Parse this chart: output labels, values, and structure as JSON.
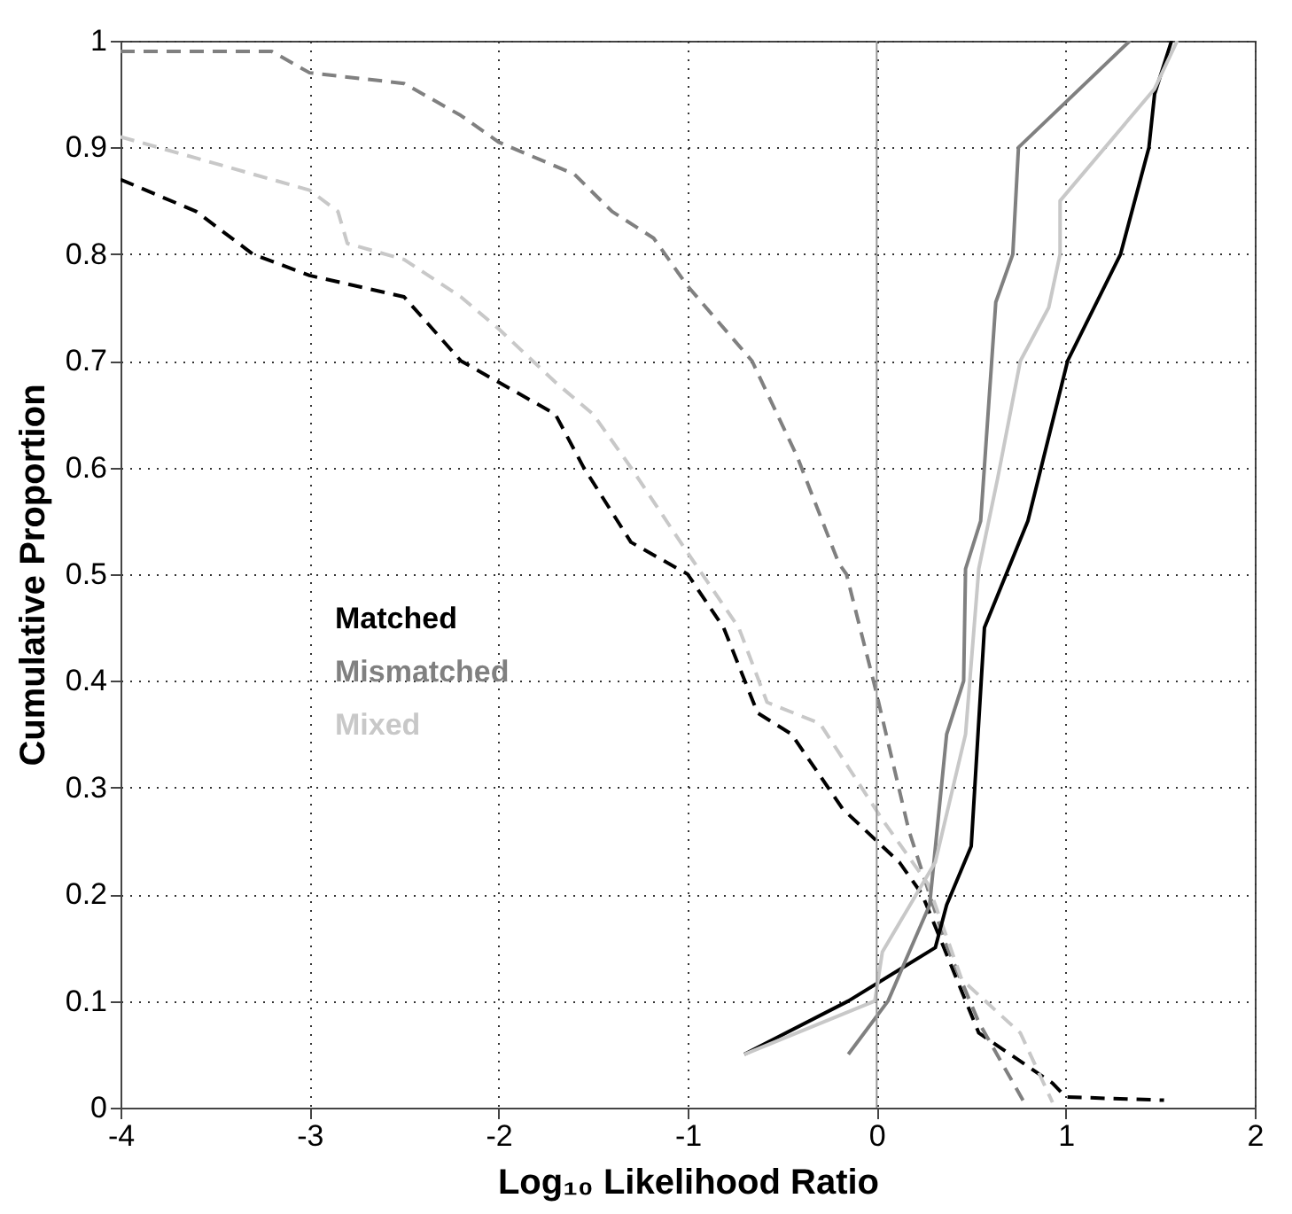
{
  "chart_data": {
    "type": "line",
    "xlabel": "Log₁₀ Likelihood Ratio",
    "ylabel": "Cumulative Proportion",
    "xlim": [
      -4,
      2
    ],
    "xticks": [
      -4,
      -3,
      -2,
      -1,
      0,
      1,
      2
    ],
    "ylim": [
      0,
      1
    ],
    "yticks": [
      0,
      0.1,
      0.2,
      0.3,
      0.4,
      0.5,
      0.6,
      0.7,
      0.8,
      0.9,
      1
    ],
    "grid": true,
    "legend": "left",
    "marker": "none",
    "ref_lines": [
      {
        "axis": "x",
        "value": 0,
        "color": "#999999",
        "line_style": "solid"
      }
    ],
    "series": [
      {
        "name": "Matched",
        "color": "#000000",
        "line_style": "dashed",
        "x": [
          -4,
          -3.6,
          -3.3,
          -3,
          -2.5,
          -2.2,
          -2,
          -1.7,
          -1.55,
          -1.3,
          -1,
          -0.81,
          -0.63,
          -0.45,
          -0.18,
          0.12,
          0.24,
          0.39,
          0.54,
          0.93,
          1.0,
          1.52
        ],
        "values": [
          0.87,
          0.84,
          0.8,
          0.78,
          0.76,
          0.7,
          0.68,
          0.65,
          0.6,
          0.53,
          0.5,
          0.45,
          0.37,
          0.35,
          0.28,
          0.23,
          0.2,
          0.135,
          0.07,
          0.023,
          0.01,
          0.007
        ]
      },
      {
        "name": "Mismatched",
        "color": "#808080",
        "line_style": "dashed",
        "x": [
          -4,
          -3.2,
          -3,
          -2.5,
          -2.2,
          -2,
          -1.6,
          -1.4,
          -1.18,
          -1.0,
          -0.66,
          -0.42,
          -0.2,
          -0.16,
          -0.01,
          0.17,
          0.36,
          0.54,
          0.78
        ],
        "values": [
          0.99,
          0.99,
          0.97,
          0.96,
          0.93,
          0.905,
          0.875,
          0.84,
          0.815,
          0.77,
          0.7,
          0.61,
          0.51,
          0.5,
          0.395,
          0.26,
          0.156,
          0.08,
          0.005
        ]
      },
      {
        "name": "Mixed",
        "color": "#c8c8c8",
        "line_style": "dashed",
        "x": [
          -4,
          -3.6,
          -3.2,
          -3,
          -2.85,
          -2.8,
          -2.5,
          -2.2,
          -2,
          -1.7,
          -1.5,
          -1.3,
          -1.0,
          -0.73,
          -0.58,
          -0.3,
          0.03,
          0.27,
          0.45,
          0.76,
          0.93
        ],
        "values": [
          0.91,
          0.89,
          0.87,
          0.86,
          0.84,
          0.81,
          0.795,
          0.76,
          0.73,
          0.68,
          0.65,
          0.6,
          0.52,
          0.45,
          0.38,
          0.36,
          0.27,
          0.21,
          0.12,
          0.07,
          0.005
        ]
      },
      {
        "color": "#000000",
        "line_style": "solid",
        "x": [
          -0.7,
          -0.15,
          0.31,
          0.37,
          0.5,
          0.57,
          0.8,
          1.01,
          1.29,
          1.44,
          1.47,
          1.56
        ],
        "values": [
          0.05,
          0.1,
          0.15,
          0.19,
          0.245,
          0.45,
          0.55,
          0.7,
          0.8,
          0.9,
          0.95,
          1.0
        ]
      },
      {
        "color": "#808080",
        "line_style": "solid",
        "x": [
          -0.15,
          0.06,
          0.28,
          0.37,
          0.46,
          0.47,
          0.55,
          0.63,
          0.72,
          0.75,
          1.34
        ],
        "values": [
          0.05,
          0.1,
          0.19,
          0.35,
          0.4,
          0.505,
          0.55,
          0.755,
          0.8,
          0.9,
          1.0
        ]
      },
      {
        "color": "#c8c8c8",
        "line_style": "solid",
        "x": [
          -0.7,
          -0.01,
          0.03,
          0.31,
          0.47,
          0.54,
          0.64,
          0.76,
          0.91,
          0.97,
          0.97,
          1.47,
          1.59
        ],
        "values": [
          0.05,
          0.1,
          0.146,
          0.23,
          0.35,
          0.505,
          0.59,
          0.7,
          0.75,
          0.8,
          0.85,
          0.955,
          1.0
        ]
      }
    ]
  }
}
